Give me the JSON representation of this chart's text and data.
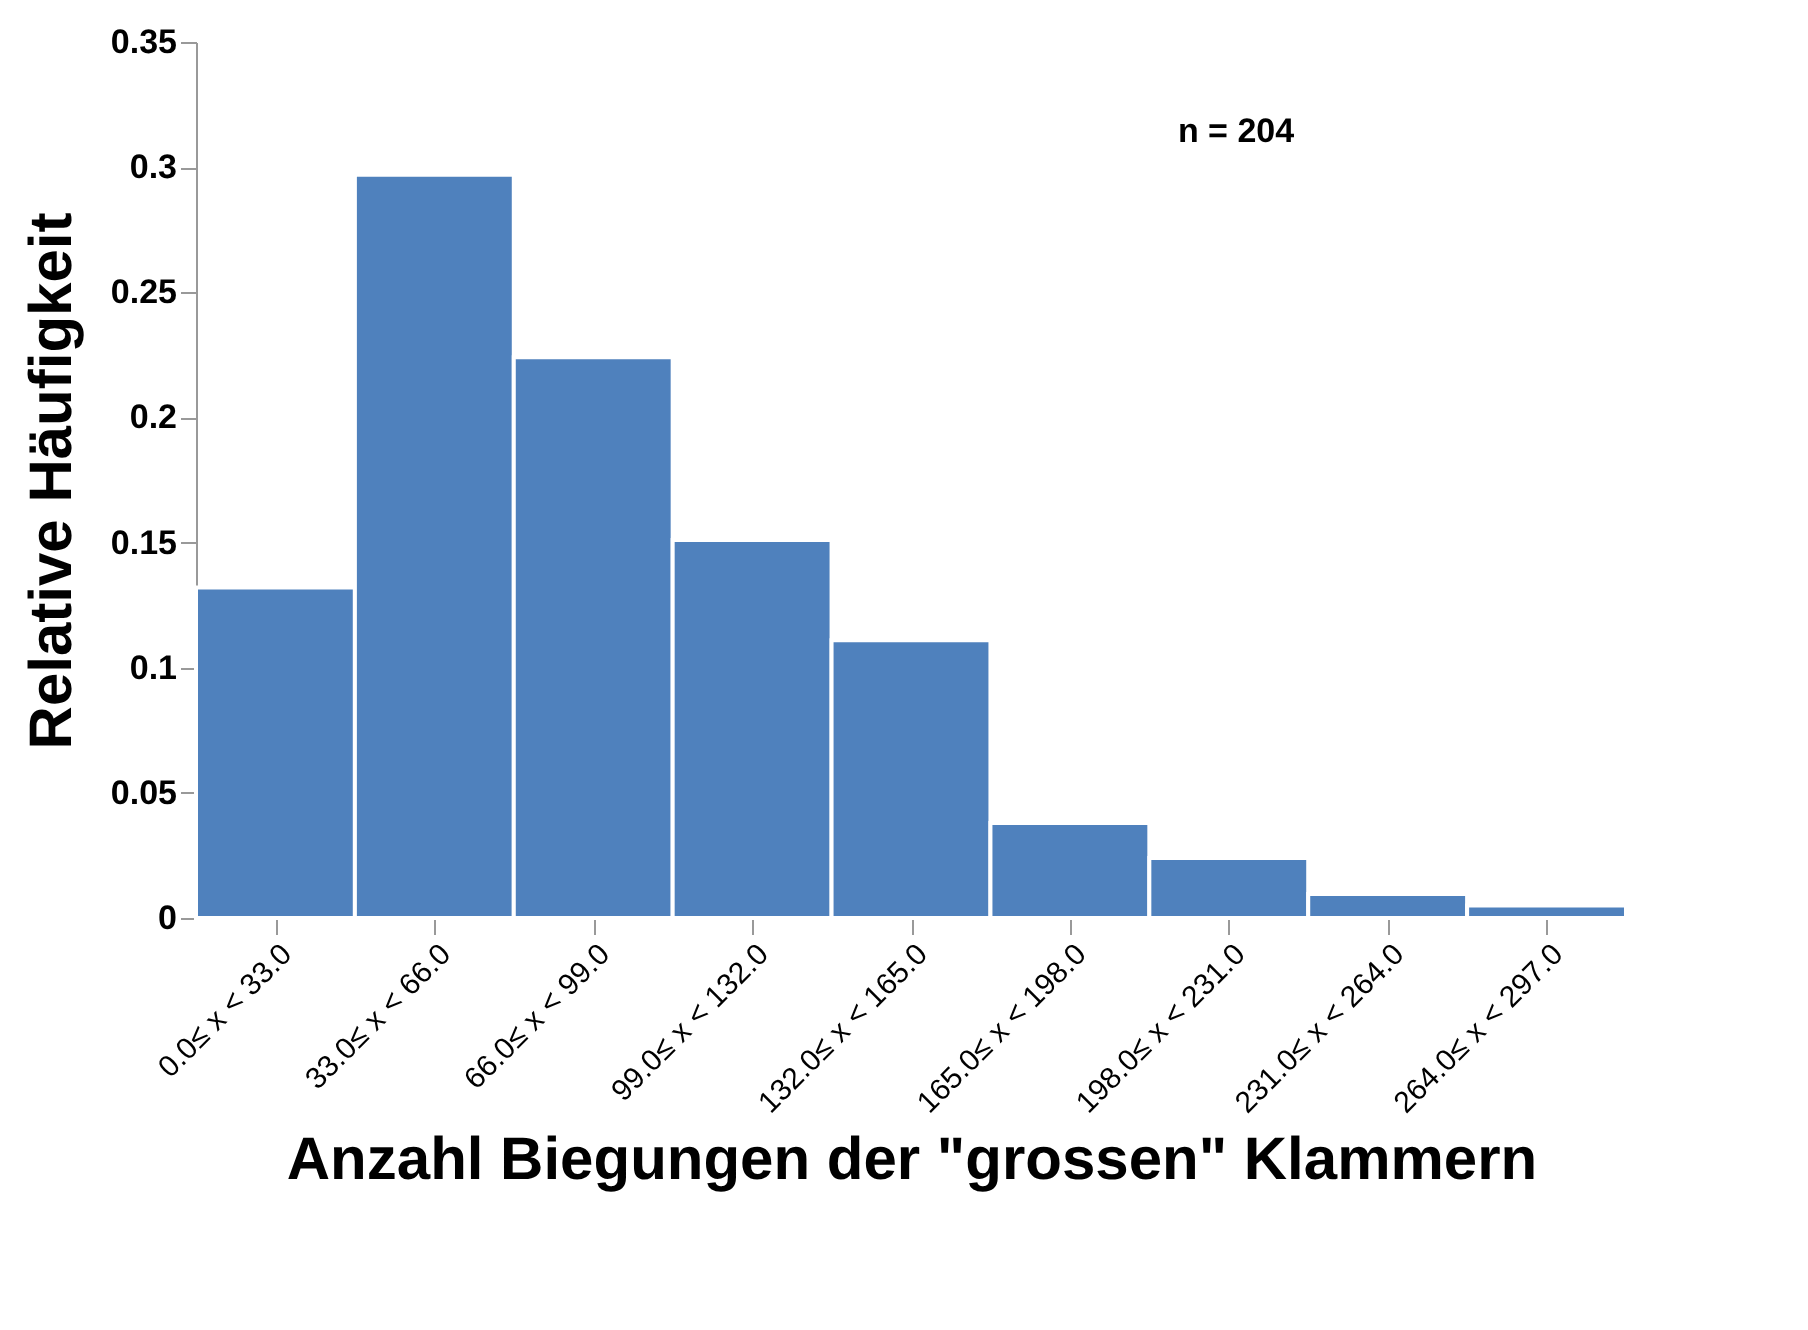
{
  "chart_data": {
    "type": "bar",
    "ylabel": "Relative Häufigkeit",
    "xlabel": "Anzahl Biegungen der  \"grossen\" Klammern",
    "annotations": [
      "n = 204"
    ],
    "categories": [
      "0.0≤ x < 33.0",
      "33.0≤ x < 66.0",
      "66.0≤ x < 99.0",
      "99.0≤ x < 132.0",
      "132.0≤ x < 165.0",
      "165.0≤ x < 198.0",
      "198.0≤ x < 231.0",
      "231.0≤ x < 264.0",
      "264.0≤ x < 297.0"
    ],
    "values": [
      0.132,
      0.297,
      0.224,
      0.151,
      0.111,
      0.038,
      0.024,
      0.0096,
      0.005
    ],
    "color": "#4f81bd",
    "ylim": [
      0,
      0.35
    ],
    "yticks": [
      0,
      0.05,
      0.1,
      0.15,
      0.2,
      0.25,
      0.3,
      0.35
    ],
    "grid": false
  }
}
